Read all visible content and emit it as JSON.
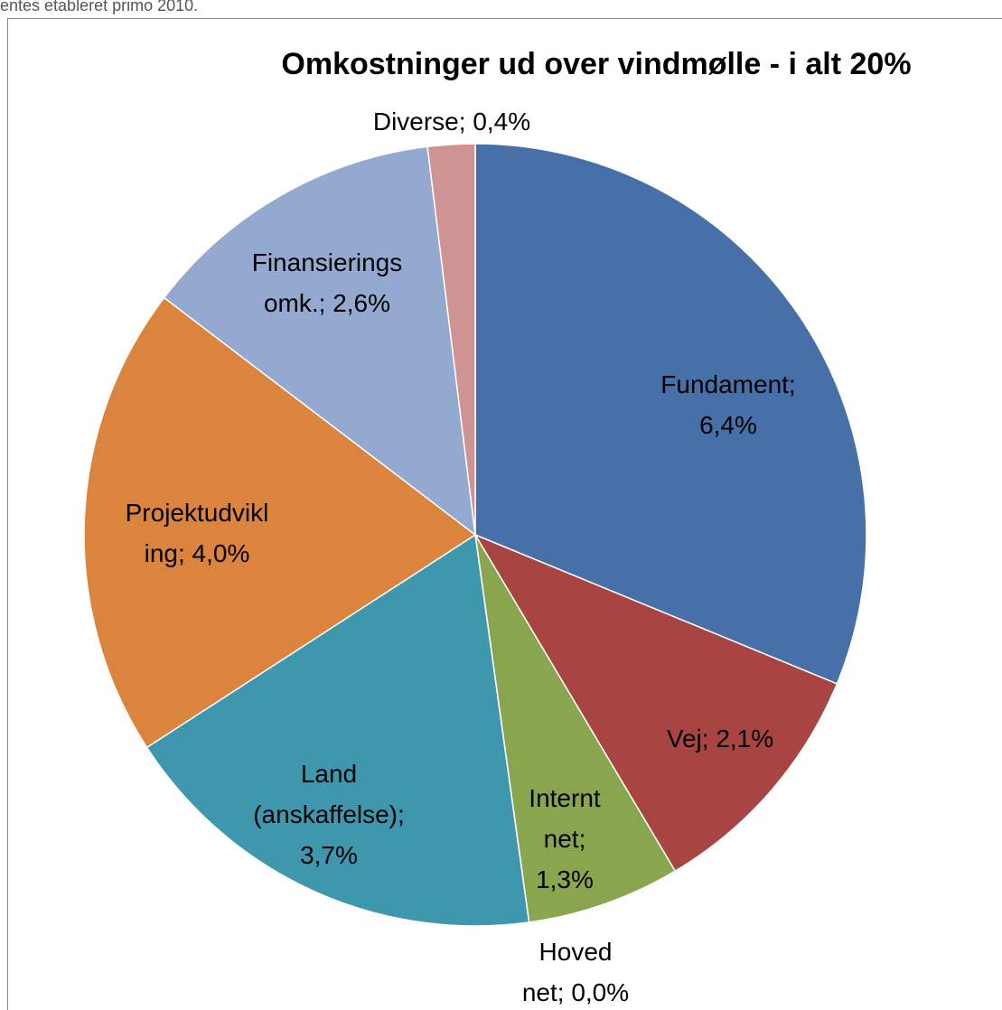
{
  "page_text": "entes etableret primo 2010.",
  "chart_data": {
    "type": "pie",
    "title": "Omkostninger ud over vindmølle - i alt 20%",
    "values": [
      6.4,
      2.1,
      1.3,
      0.0,
      3.7,
      4.0,
      2.6,
      0.4
    ],
    "value_labels": [
      [
        "Fundament;",
        "6,4%"
      ],
      [
        "Vej; 2,1%"
      ],
      [
        "Internt",
        "net;",
        "1,3%"
      ],
      [
        "Hoved",
        "net; 0,0%"
      ],
      [
        "Land",
        "(anskaffelse);",
        "3,7%"
      ],
      [
        "Projektudvikl",
        "ing; 4,0%"
      ],
      [
        "Finansierings",
        "omk.; 2,6%"
      ],
      [
        "Diverse; 0,4%"
      ]
    ],
    "colors": [
      "#4670a7",
      "#a84442",
      "#89a54e",
      "#7f60a0",
      "#3f97ae",
      "#db843d",
      "#93a9cf",
      "#d09393"
    ]
  }
}
